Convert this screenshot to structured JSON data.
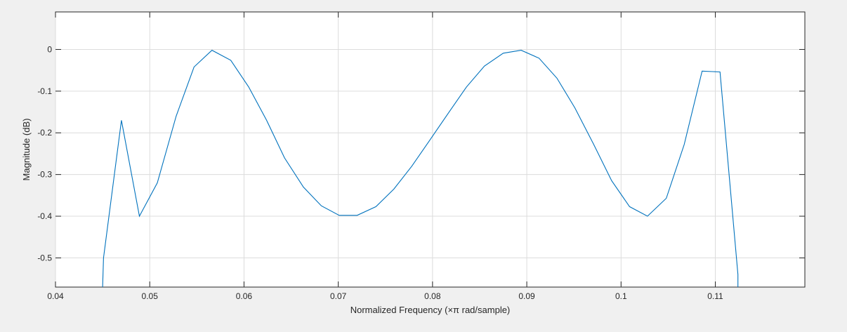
{
  "chart_data": {
    "type": "line",
    "title": "",
    "xlabel": "Normalized Frequency  (×π rad/sample)",
    "ylabel": "Magnitude (dB)",
    "xlim": [
      0.04,
      0.1195
    ],
    "ylim": [
      -0.57,
      0.09
    ],
    "x_ticks": [
      0.04,
      0.05,
      0.06,
      0.07,
      0.08,
      0.09,
      0.1,
      0.11
    ],
    "x_tick_labels": [
      "0.04",
      "0.05",
      "0.06",
      "0.07",
      "0.08",
      "0.09",
      "0.1",
      "0.11"
    ],
    "y_ticks": [
      0,
      -0.1,
      -0.2,
      -0.3,
      -0.4,
      -0.5
    ],
    "y_tick_labels": [
      "0",
      "-0.1",
      "-0.2",
      "-0.3",
      "-0.4",
      "-0.5"
    ],
    "grid": true,
    "line_color": "#0072bd",
    "series": [
      {
        "x": [
          0.045,
          0.0451,
          0.047,
          0.0489,
          0.0508,
          0.0528,
          0.0547,
          0.0566,
          0.0586,
          0.0605,
          0.0624,
          0.0643,
          0.0663,
          0.0682,
          0.0701,
          0.072,
          0.074,
          0.0759,
          0.0778,
          0.0797,
          0.0817,
          0.0836,
          0.0855,
          0.0875,
          0.0894,
          0.0913,
          0.0932,
          0.0951,
          0.0971,
          0.099,
          0.1009,
          0.1028,
          0.1048,
          0.1067,
          0.1086,
          0.1105,
          0.1124,
          0.1124
        ],
        "y": [
          -0.57,
          -0.5,
          -0.17,
          -0.4,
          -0.32,
          -0.16,
          -0.042,
          -0.002,
          -0.026,
          -0.09,
          -0.17,
          -0.26,
          -0.33,
          -0.375,
          -0.398,
          -0.398,
          -0.377,
          -0.335,
          -0.28,
          -0.218,
          -0.152,
          -0.09,
          -0.04,
          -0.009,
          -0.002,
          -0.021,
          -0.069,
          -0.14,
          -0.228,
          -0.315,
          -0.377,
          -0.4,
          -0.357,
          -0.228,
          -0.052,
          -0.054,
          -0.54,
          -0.57
        ]
      }
    ]
  }
}
